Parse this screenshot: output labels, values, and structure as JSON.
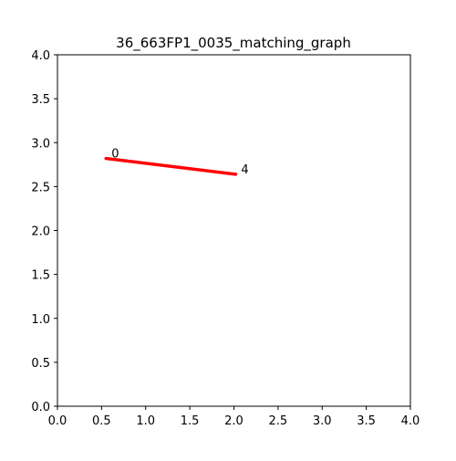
{
  "chart_data": {
    "type": "line",
    "title": "36_663FP1_0035_matching_graph",
    "xlabel": "",
    "ylabel": "",
    "xlim": [
      0.0,
      4.0
    ],
    "ylim": [
      0.0,
      4.0
    ],
    "x_ticks": [
      "0.0",
      "0.5",
      "1.0",
      "1.5",
      "2.0",
      "2.5",
      "3.0",
      "3.5",
      "4.0"
    ],
    "y_ticks": [
      "0.0",
      "0.5",
      "1.0",
      "1.5",
      "2.0",
      "2.5",
      "3.0",
      "3.5",
      "4.0"
    ],
    "grid": false,
    "nodes": [
      {
        "label": "0",
        "x": 0.55,
        "y": 2.82
      },
      {
        "label": "4",
        "x": 2.02,
        "y": 2.64
      }
    ],
    "edges": [
      {
        "from": "0",
        "to": "4",
        "color": "#ff0000"
      }
    ]
  }
}
